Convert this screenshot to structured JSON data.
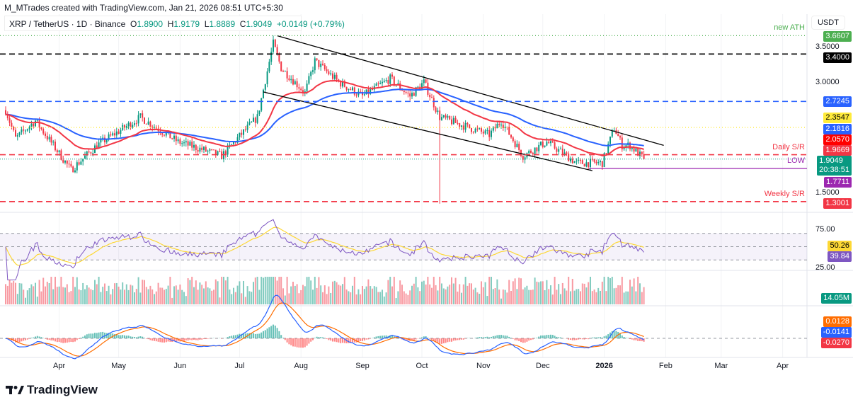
{
  "header": {
    "credit": "M_MTrades created with TradingView.com, Jan 21, 2026 08:51 UTC+5:30",
    "symbol": "XRP / TetherUS · 1D · Binance",
    "o_label": "O",
    "o": "1.8900",
    "h_label": "H",
    "h": "1.9179",
    "l_label": "L",
    "l": "1.8889",
    "c_label": "C",
    "c": "1.9049",
    "change": "+0.0149 (+0.79%)"
  },
  "currency": "USDT",
  "price_axis": [
    "3.5000",
    "3.0000",
    "1.5000"
  ],
  "rsi_axis": [
    "75.00",
    "25.00"
  ],
  "levels": [
    {
      "value": 3.6607,
      "label": "3.6607",
      "note": "new ATH",
      "color": "#4caf50",
      "style": "dotted"
    },
    {
      "value": 3.4,
      "label": "3.4000",
      "color": "#000000",
      "style": "dashed"
    },
    {
      "value": 2.7245,
      "label": "2.7245",
      "color": "#2962ff",
      "style": "dashed"
    },
    {
      "value": 2.3547,
      "label": "2.3547",
      "color": "#ffeb3b",
      "style": "dotted"
    },
    {
      "value": 1.9669,
      "label": "1.9669",
      "note": "Daily S/R",
      "color": "#f23645",
      "style": "dashed"
    },
    {
      "value": 1.7711,
      "label": "1.7711",
      "note": "LOW",
      "color": "#9c27b0",
      "style": "solid"
    },
    {
      "value": 1.3001,
      "label": "1.3001",
      "note": "Weekly S/R",
      "color": "#f23645",
      "style": "dashed"
    }
  ],
  "ma_labels": {
    "sma100": "2.1816",
    "ema50": "2.0570"
  },
  "current": {
    "price": "1.9049",
    "countdown": "20:38:51"
  },
  "rsi": {
    "ma": "50.26",
    "value": "39.84"
  },
  "volume": {
    "value": "14.05M"
  },
  "macd": {
    "hist": "0.0128",
    "signal": "-0.0141",
    "macd": "-0.0270"
  },
  "time_axis": [
    {
      "label": "Apr",
      "date": "2025-04-01"
    },
    {
      "label": "May",
      "date": "2025-05-01"
    },
    {
      "label": "Jun",
      "date": "2025-06-01"
    },
    {
      "label": "Jul",
      "date": "2025-07-01"
    },
    {
      "label": "Aug",
      "date": "2025-08-01"
    },
    {
      "label": "Sep",
      "date": "2025-09-01"
    },
    {
      "label": "Oct",
      "date": "2025-10-01"
    },
    {
      "label": "Nov",
      "date": "2025-11-01"
    },
    {
      "label": "Dec",
      "date": "2025-12-01"
    },
    {
      "label": "2026",
      "date": "2026-01-01"
    },
    {
      "label": "Feb",
      "date": "2026-02-01"
    },
    {
      "label": "Mar",
      "date": "2026-03-01"
    },
    {
      "label": "Apr",
      "date": "2026-04-01"
    }
  ],
  "colors": {
    "up": "#089981",
    "down": "#f23645",
    "ema50": "#f23645",
    "sma100": "#2962ff",
    "rsi": "#7e57c2",
    "rsi_ma": "#fdd835",
    "macd": "#2962ff",
    "signal": "#ff6d00"
  },
  "chart_data": {
    "type": "candlestick",
    "title": "XRP / TetherUS · 1D · Binance",
    "ylim": [
      1.2,
      3.7
    ],
    "close_path": [
      [
        "2025-03-05",
        2.6
      ],
      [
        "2025-03-10",
        2.2
      ],
      [
        "2025-03-20",
        2.45
      ],
      [
        "2025-04-07",
        1.75
      ],
      [
        "2025-04-20",
        2.1
      ],
      [
        "2025-05-12",
        2.5
      ],
      [
        "2025-05-31",
        2.15
      ],
      [
        "2025-06-22",
        1.95
      ],
      [
        "2025-06-30",
        2.2
      ],
      [
        "2025-07-10",
        2.5
      ],
      [
        "2025-07-18",
        3.55
      ],
      [
        "2025-07-22",
        3.2
      ],
      [
        "2025-08-03",
        2.85
      ],
      [
        "2025-08-08",
        3.3
      ],
      [
        "2025-08-20",
        3.0
      ],
      [
        "2025-09-01",
        2.8
      ],
      [
        "2025-09-15",
        3.05
      ],
      [
        "2025-09-25",
        2.8
      ],
      [
        "2025-10-02",
        3.0
      ],
      [
        "2025-10-10",
        2.5
      ],
      [
        "2025-10-20",
        2.4
      ],
      [
        "2025-11-04",
        2.25
      ],
      [
        "2025-11-10",
        2.45
      ],
      [
        "2025-11-21",
        1.95
      ],
      [
        "2025-12-03",
        2.15
      ],
      [
        "2025-12-18",
        1.85
      ],
      [
        "2025-12-31",
        1.85
      ],
      [
        "2026-01-06",
        2.35
      ],
      [
        "2026-01-10",
        2.1
      ],
      [
        "2026-01-14",
        2.1
      ],
      [
        "2026-01-21",
        1.9049
      ]
    ],
    "extreme_wicks": [
      [
        "2025-07-18",
        3.6607
      ],
      [
        "2025-10-10",
        1.27
      ]
    ],
    "trendlines": [
      {
        "from": [
          "2025-07-20",
          3.66
        ],
        "to": [
          "2026-01-31",
          2.1
        ]
      },
      {
        "from": [
          "2025-07-13",
          2.86
        ],
        "to": [
          "2025-12-26",
          1.74
        ]
      }
    ],
    "indicators": [
      "EMA 50",
      "SMA 100",
      "RSI 14",
      "Volume",
      "MACD"
    ]
  }
}
